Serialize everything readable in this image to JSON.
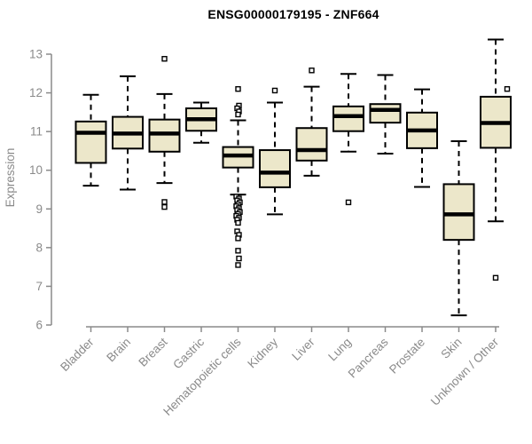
{
  "chart_data": {
    "type": "boxplot",
    "title": "ENSG00000179195 - ZNF664",
    "ylabel": "Expression",
    "xlabel": "",
    "ylim": [
      6,
      13
    ],
    "yticks": [
      "6",
      "7",
      "8",
      "9",
      "10",
      "11",
      "12",
      "13"
    ],
    "grid": false,
    "legend": "none",
    "categories": [
      "Bladder",
      "Brain",
      "Breast",
      "Gastric",
      "Hematopoietic cells",
      "Kidney",
      "Liver",
      "Lung",
      "Pancreas",
      "Prostate",
      "Skin",
      "Unknown / Other"
    ],
    "series": [
      {
        "name": "Bladder",
        "low": 9.6,
        "q1": 10.19,
        "median": 10.97,
        "q3": 11.26,
        "high": 11.95,
        "outliers": []
      },
      {
        "name": "Brain",
        "low": 9.5,
        "q1": 10.56,
        "median": 10.95,
        "q3": 11.38,
        "high": 12.43,
        "outliers": []
      },
      {
        "name": "Breast",
        "low": 9.67,
        "q1": 10.48,
        "median": 10.95,
        "q3": 11.31,
        "high": 11.97,
        "outliers": [
          {
            "v": 12.88
          },
          {
            "v": 9.18
          },
          {
            "v": 9.05
          }
        ]
      },
      {
        "name": "Gastric",
        "low": 10.71,
        "q1": 11.02,
        "median": 11.32,
        "q3": 11.6,
        "high": 11.75,
        "outliers": []
      },
      {
        "name": "Hematopoietic cells",
        "low": 9.37,
        "q1": 10.07,
        "median": 10.38,
        "q3": 10.6,
        "high": 11.29,
        "outliers": [
          {
            "v": 12.1
          },
          {
            "v": 11.67,
            "dx": 1
          },
          {
            "v": 11.6,
            "dx": -1
          },
          {
            "v": 11.52,
            "dx": 1
          },
          {
            "v": 11.44
          },
          {
            "v": 9.32,
            "dx": -2
          },
          {
            "v": 9.27,
            "dx": 1
          },
          {
            "v": 9.22,
            "dx": -1
          },
          {
            "v": 9.17,
            "dx": 2
          },
          {
            "v": 9.12
          },
          {
            "v": 9.07,
            "dx": -2
          },
          {
            "v": 9.02,
            "dx": 1
          },
          {
            "v": 8.97,
            "dx": -1
          },
          {
            "v": 8.92,
            "dx": 2
          },
          {
            "v": 8.87
          },
          {
            "v": 8.82,
            "dx": -2
          },
          {
            "v": 8.77,
            "dx": 1
          },
          {
            "v": 8.72,
            "dx": -1
          },
          {
            "v": 8.64
          },
          {
            "v": 8.42,
            "dx": -1
          },
          {
            "v": 8.33,
            "dx": 1
          },
          {
            "v": 8.24
          },
          {
            "v": 7.92
          },
          {
            "v": 7.72,
            "dx": 1
          },
          {
            "v": 7.55
          }
        ]
      },
      {
        "name": "Kidney",
        "low": 8.86,
        "q1": 9.56,
        "median": 9.94,
        "q3": 10.52,
        "high": 11.75,
        "outliers": [
          {
            "v": 12.06
          }
        ]
      },
      {
        "name": "Liver",
        "low": 9.86,
        "q1": 10.25,
        "median": 10.52,
        "q3": 11.09,
        "high": 12.16,
        "outliers": [
          {
            "v": 12.58
          }
        ]
      },
      {
        "name": "Lung",
        "low": 10.48,
        "q1": 11.01,
        "median": 11.4,
        "q3": 11.65,
        "high": 12.49,
        "outliers": [
          {
            "v": 9.17
          }
        ]
      },
      {
        "name": "Pancreas",
        "low": 10.43,
        "q1": 11.23,
        "median": 11.56,
        "q3": 11.71,
        "high": 12.46,
        "outliers": []
      },
      {
        "name": "Prostate",
        "low": 9.57,
        "q1": 10.57,
        "median": 11.03,
        "q3": 11.49,
        "high": 12.09,
        "outliers": []
      },
      {
        "name": "Skin",
        "low": 6.25,
        "q1": 8.2,
        "median": 8.86,
        "q3": 9.64,
        "high": 10.75,
        "outliers": []
      },
      {
        "name": "Unknown / Other",
        "low": 8.68,
        "q1": 10.58,
        "median": 11.22,
        "q3": 11.9,
        "high": 13.38,
        "outliers": [
          {
            "v": 12.1,
            "dx": 13
          },
          {
            "v": 7.22
          }
        ]
      }
    ],
    "colors": {
      "box_fill": "#ece7ca",
      "box_border": "#000000",
      "median": "#000000",
      "whisker": "#000000",
      "axis": "#8a8a8a",
      "tick_label": "#8a8a8a",
      "title": "#000000",
      "background": "#ffffff"
    }
  }
}
